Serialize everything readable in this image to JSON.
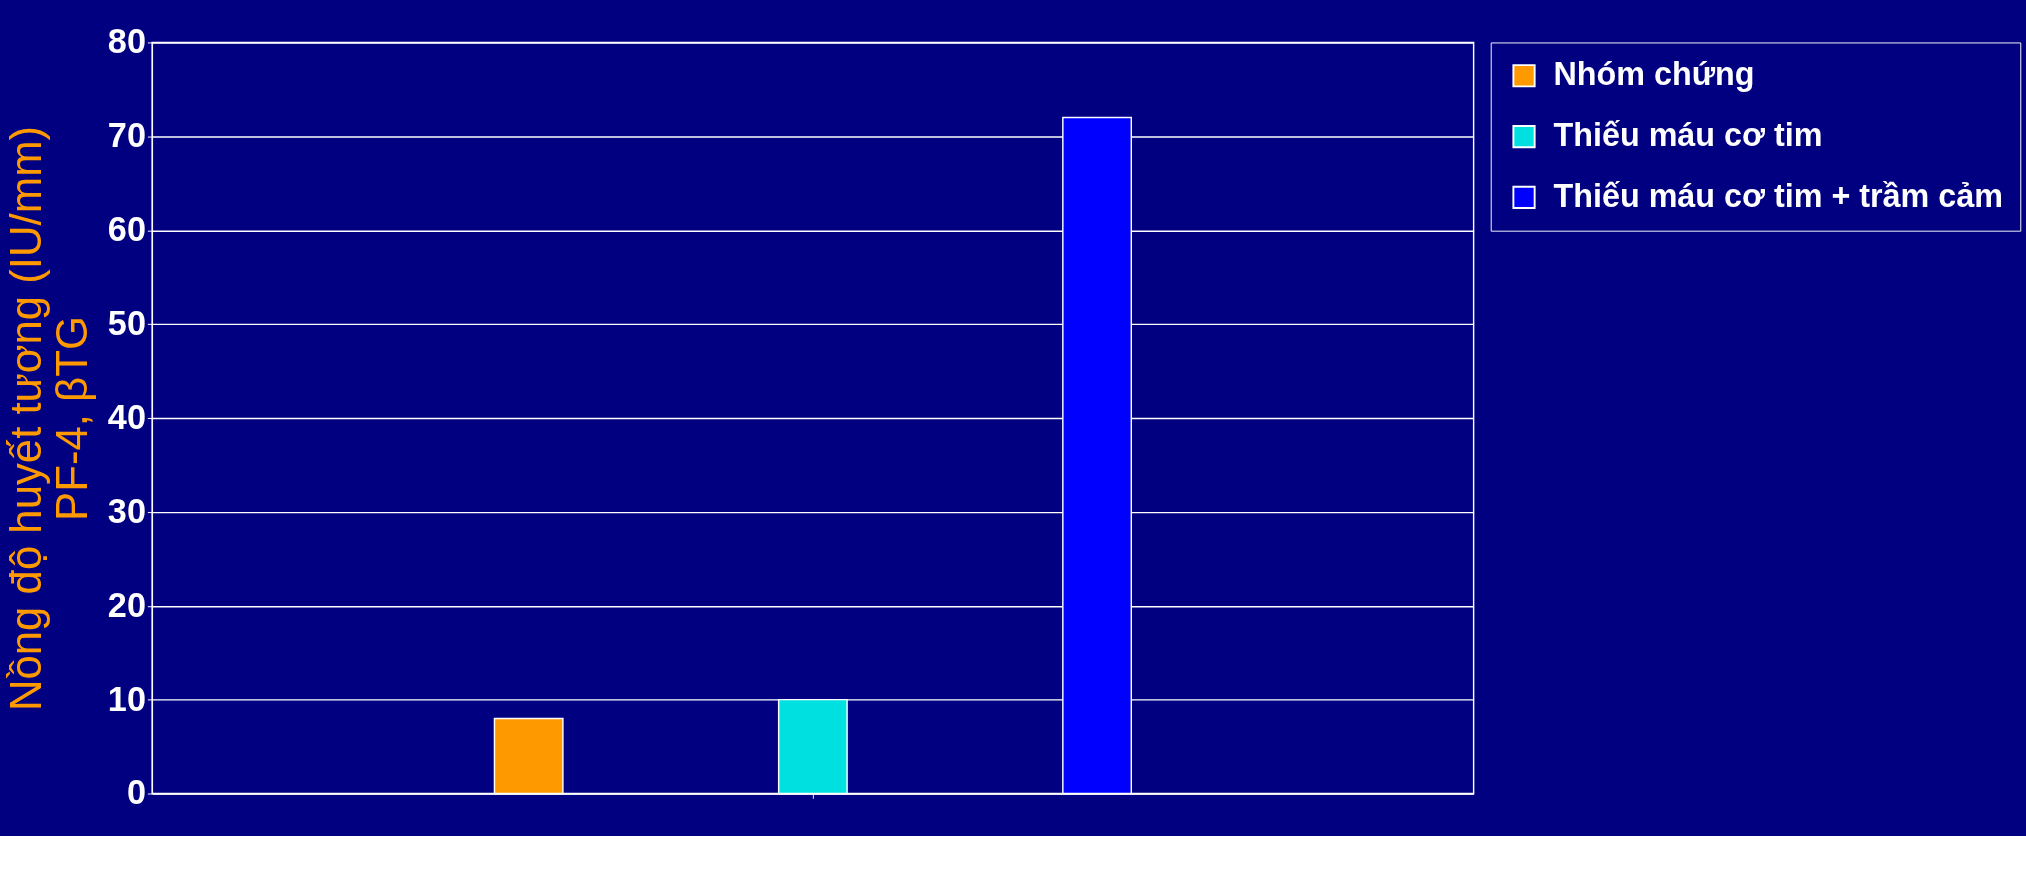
{
  "chart_data": {
    "type": "bar",
    "ylabel": "Nồng độ huyết tương (IU/mm)\nPF-4, βTG",
    "categories": [
      null
    ],
    "series": [
      {
        "name": "Nhóm chứng",
        "color": "#ff9900",
        "values": [
          8
        ]
      },
      {
        "name": "Thiếu máu cơ tim",
        "color": "#00e0e0",
        "values": [
          10
        ]
      },
      {
        "name": "Thiếu máu cơ tim + trầm cảm",
        "color": "#0000ff",
        "values": [
          72
        ]
      }
    ],
    "ylim": [
      0,
      80
    ],
    "yticks": [
      0,
      10,
      20,
      30,
      40,
      50,
      60,
      70,
      80
    ],
    "grid": "y",
    "legend": "right"
  }
}
